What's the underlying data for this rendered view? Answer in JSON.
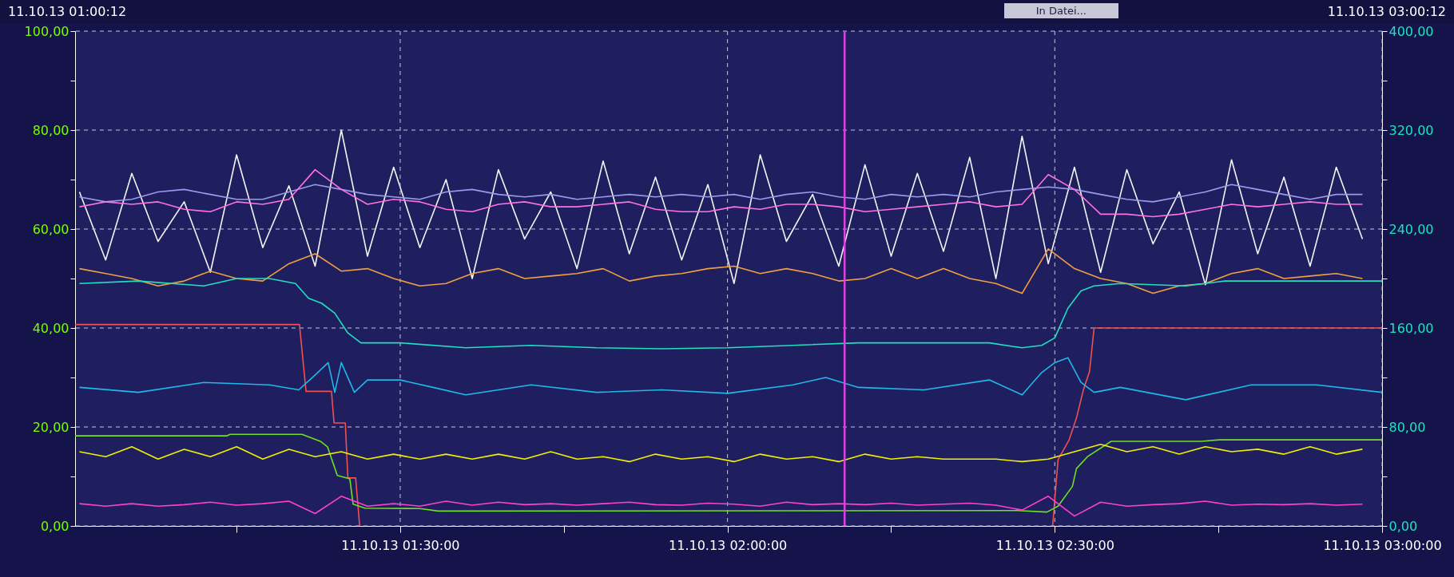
{
  "chart_data": {
    "type": "line",
    "annotations": [
      "11.10.13 01:00:12",
      "11.10.13 03:00:12",
      "In Datei..."
    ],
    "x": [
      "--10-11T01:00:36",
      "--10-11T01:03:00",
      "--10-11T01:05:24",
      "--10-11T01:07:48",
      "--10-11T01:10:12",
      "--10-11T01:12:36",
      "--10-11T01:15:00",
      "--10-11T01:17:24",
      "--10-11T01:19:48",
      "--10-11T01:22:12",
      "--10-11T01:24:36",
      "--10-11T01:27:00",
      "--10-11T01:29:24",
      "--10-11T01:31:48",
      "--10-11T01:34:12",
      "--10-11T01:36:36",
      "--10-11T01:39:00",
      "--10-11T01:41:24",
      "--10-11T01:43:48",
      "--10-11T01:46:12",
      "--10-11T01:48:36",
      "--10-11T01:51:00",
      "--10-11T01:53:24",
      "--10-11T01:55:48",
      "--10-11T01:58:12",
      "--10-11T02:00:36",
      "--10-11T02:03:00",
      "--10-11T02:05:24",
      "--10-11T02:07:48",
      "--10-11T02:10:12",
      "--10-11T02:12:36",
      "--10-11T02:15:00",
      "--10-11T02:17:24",
      "--10-11T02:19:48",
      "--10-11T02:22:12",
      "--10-11T02:24:36",
      "--10-11T02:27:00",
      "--10-11T02:29:24",
      "--10-11T02:31:48",
      "--10-11T02:34:12",
      "--10-11T02:36:36",
      "--10-11T02:39:00",
      "--10-11T02:41:24",
      "--10-11T02:43:48",
      "--10-11T02:46:12",
      "--10-11T02:48:36",
      "--10-11T02:51:00",
      "--10-11T02:53:24",
      "--10-11T02:55:48",
      "--10-11T02:58:12"
    ],
    "xlim": [
      "--10-11T01:00:12",
      "--10-11T03:00:00"
    ],
    "xticks": [
      {
        "value": "--10-11T01:15:00",
        "label": null
      },
      {
        "value": "--10-11T01:30:00",
        "label": "11.10.13 01:30:00"
      },
      {
        "value": "--10-11T01:45:00",
        "label": null
      },
      {
        "value": "--10-11T02:00:00",
        "label": "11.10.13 02:00:00"
      },
      {
        "value": "--10-11T02:15:00",
        "label": null
      },
      {
        "value": "--10-11T02:30:00",
        "label": "11.10.13 02:30:00"
      },
      {
        "value": "--10-11T02:45:00",
        "label": null
      },
      {
        "value": "--10-11T03:00:00",
        "label": "11.10.13 03:00:00"
      }
    ],
    "ylim": [
      0,
      100
    ],
    "yticks": [
      {
        "value": 0,
        "label": "0,00"
      },
      {
        "value": 10,
        "label": null
      },
      {
        "value": 20,
        "label": "20,00"
      },
      {
        "value": 30,
        "label": null
      },
      {
        "value": 40,
        "label": "40,00"
      },
      {
        "value": 50,
        "label": null
      },
      {
        "value": 60,
        "label": "60,00"
      },
      {
        "value": 70,
        "label": null
      },
      {
        "value": 80,
        "label": "80,00"
      },
      {
        "value": 90,
        "label": null
      },
      {
        "value": 100,
        "label": "100,00"
      }
    ],
    "y2lim": [
      0,
      400
    ],
    "y2ticks": [
      {
        "value": 0,
        "label": "0,00"
      },
      {
        "value": 40,
        "label": null
      },
      {
        "value": 80,
        "label": "80,00"
      },
      {
        "value": 120,
        "label": null
      },
      {
        "value": 160,
        "label": "160,00"
      },
      {
        "value": 200,
        "label": null
      },
      {
        "value": 240,
        "label": "240,00"
      },
      {
        "value": 280,
        "label": null
      },
      {
        "value": 320,
        "label": "320,00"
      },
      {
        "value": 360,
        "label": null
      },
      {
        "value": 400,
        "label": "400,00"
      }
    ],
    "grid": true,
    "ref_lines": [
      {
        "axis": "x",
        "value": "--10-11T02:10:44",
        "color": "#e040e0"
      }
    ],
    "series": [
      {
        "color": "#f4f4f4",
        "axis": "y2",
        "values": [
          270,
          215,
          285,
          230,
          262,
          205,
          300,
          225,
          275,
          210,
          320,
          218,
          290,
          225,
          280,
          200,
          288,
          232,
          270,
          208,
          295,
          220,
          282,
          215,
          276,
          196,
          300,
          230,
          268,
          210,
          292,
          218,
          285,
          222,
          298,
          200,
          315,
          212,
          290,
          205,
          288,
          228,
          270,
          195,
          296,
          220,
          282,
          210,
          290,
          232
        ]
      },
      {
        "color": "#9a9aee",
        "values": [
          66.5,
          65.5,
          66,
          67.5,
          68,
          67,
          66,
          66,
          67.5,
          69,
          68,
          67,
          66.5,
          66,
          67.5,
          68,
          67,
          66.5,
          67,
          66,
          66.5,
          67,
          66.5,
          67,
          66.5,
          67,
          66,
          67,
          67.5,
          66.5,
          66,
          67,
          66.5,
          67,
          66.5,
          67.5,
          68,
          68.5,
          68,
          67,
          66,
          65.5,
          66.5,
          67.5,
          69,
          68,
          67,
          66,
          67,
          67
        ]
      },
      {
        "color": "#ff70e0",
        "values": [
          64.5,
          65.5,
          65,
          65.5,
          64,
          63.5,
          65.5,
          65,
          66,
          72,
          68,
          65,
          66,
          65.5,
          64,
          63.5,
          65,
          65.5,
          64.5,
          64.5,
          65,
          65.5,
          64,
          63.5,
          63.5,
          64.5,
          64,
          65,
          65,
          64.5,
          63.5,
          64,
          64.5,
          65,
          65.5,
          64.5,
          65,
          71,
          68,
          63,
          63,
          62.5,
          63,
          64,
          65,
          64.5,
          65,
          65.5,
          65,
          65
        ]
      },
      {
        "color": "#f0a040",
        "values": [
          52,
          51,
          50,
          48.5,
          49.5,
          51.5,
          50,
          49.5,
          53,
          55,
          51.5,
          52,
          50,
          48.5,
          49,
          51,
          52,
          50,
          50.5,
          51,
          52,
          49.5,
          50.5,
          51,
          52,
          52.5,
          51,
          52,
          51,
          49.5,
          50,
          52,
          50,
          52,
          50,
          49,
          47,
          56,
          52,
          50,
          49,
          47,
          48.5,
          49,
          51,
          52,
          50,
          50.5,
          51,
          50
        ]
      },
      {
        "color": "#20e0c0",
        "x": [
          "--10-11T01:00:36",
          "--10-11T01:06:00",
          "--10-11T01:12:00",
          "--10-11T01:15:00",
          "--10-11T01:18:00",
          "--10-11T01:20:24",
          "--10-11T01:21:36",
          "--10-11T01:22:48",
          "--10-11T01:24:00",
          "--10-11T01:25:12",
          "--10-11T01:26:24",
          "--10-11T01:30:00",
          "--10-11T01:36:00",
          "--10-11T01:42:00",
          "--10-11T01:48:00",
          "--10-11T01:54:00",
          "--10-11T02:00:00",
          "--10-11T02:06:00",
          "--10-11T02:12:00",
          "--10-11T02:18:00",
          "--10-11T02:24:00",
          "--10-11T02:27:00",
          "--10-11T02:28:48",
          "--10-11T02:30:00",
          "--10-11T02:31:12",
          "--10-11T02:32:24",
          "--10-11T02:33:36",
          "--10-11T02:36:00",
          "--10-11T02:42:00",
          "--10-11T02:45:36",
          "--10-11T02:51:00",
          "--10-11T03:00:00"
        ],
        "values": [
          49,
          49.5,
          48.5,
          50,
          50,
          49,
          46,
          45,
          43,
          39,
          37,
          37,
          36,
          36.5,
          36,
          35.8,
          36,
          36.5,
          37,
          37,
          37,
          36,
          36.5,
          38,
          44,
          47.5,
          48.5,
          49,
          48.5,
          49.5,
          49.5,
          49.5
        ]
      },
      {
        "color": "#f05050",
        "x": [
          "--10-11T01:00:12",
          "--10-11T01:20:46",
          "--10-11T01:21:22",
          "--10-11T01:23:42",
          "--10-11T01:23:56",
          "--10-11T01:24:58",
          "--10-11T01:25:12",
          "--10-11T01:25:55",
          "--10-11T01:26:17",
          "--10-11T01:54:00",
          "--10-11T02:29:48",
          "--10-11T02:30:18",
          "--10-11T02:31:19",
          "--10-11T02:31:59",
          "--10-11T02:32:38",
          "--10-11T02:33:11",
          "--10-11T02:33:36",
          "--10-11T03:00:00"
        ],
        "values": [
          40.7,
          40.7,
          27.2,
          27.2,
          20.8,
          20.8,
          9.7,
          9.7,
          0,
          null,
          0,
          13.4,
          17.4,
          21.8,
          27.6,
          31.2,
          40,
          40
        ]
      },
      {
        "color": "#20b8e8",
        "x": [
          "--10-11T01:00:36",
          "--10-11T01:06:00",
          "--10-11T01:12:00",
          "--10-11T01:18:00",
          "--10-11T01:20:42",
          "--10-11T01:22:12",
          "--10-11T01:23:24",
          "--10-11T01:24:00",
          "--10-11T01:24:36",
          "--10-11T01:25:48",
          "--10-11T01:27:00",
          "--10-11T01:30:00",
          "--10-11T01:33:00",
          "--10-11T01:36:00",
          "--10-11T01:42:00",
          "--10-11T01:48:00",
          "--10-11T01:54:00",
          "--10-11T02:00:00",
          "--10-11T02:06:00",
          "--10-11T02:09:00",
          "--10-11T02:12:00",
          "--10-11T02:18:00",
          "--10-11T02:24:00",
          "--10-11T02:27:00",
          "--10-11T02:28:48",
          "--10-11T02:30:00",
          "--10-11T02:31:12",
          "--10-11T02:32:24",
          "--10-11T02:33:36",
          "--10-11T02:36:00",
          "--10-11T02:42:00",
          "--10-11T02:48:00",
          "--10-11T02:54:00",
          "--10-11T03:00:00"
        ],
        "values": [
          28,
          27,
          29,
          28.5,
          27.5,
          30.5,
          33,
          27,
          33,
          27,
          29.5,
          29.5,
          28,
          26.5,
          28.5,
          27,
          27.5,
          26.8,
          28.5,
          30,
          28,
          27.5,
          29.5,
          26.5,
          31,
          33,
          34,
          29,
          27,
          28,
          25.5,
          28.5,
          28.5,
          27
        ]
      },
      {
        "color": "#70e020",
        "x": [
          "--10-11T01:00:12",
          "--10-11T01:14:06",
          "--10-11T01:14:24",
          "--10-11T01:21:00",
          "--10-11T01:22:41",
          "--10-11T01:23:20",
          "--10-11T01:24:14",
          "--10-11T01:25:23",
          "--10-11T01:25:41",
          "--10-11T01:26:46",
          "--10-11T01:31:48",
          "--10-11T01:33:29",
          "--10-11T02:26:35",
          "--10-11T02:29:17",
          "--10-11T02:30:18",
          "--10-11T02:31:37",
          "--10-11T02:31:59",
          "--10-11T02:33:00",
          "--10-11T02:35:10",
          "--10-11T02:43:26",
          "--10-11T02:45:04",
          "--10-11T03:00:00"
        ],
        "values": [
          18.2,
          18.2,
          18.5,
          18.5,
          17.1,
          16,
          10.2,
          9.5,
          4.4,
          3.6,
          3.5,
          3.0,
          3.1,
          2.8,
          4,
          8,
          11.6,
          14,
          17.1,
          17.1,
          17.4,
          17.4
        ]
      },
      {
        "color": "#f0f000",
        "values": [
          15,
          14,
          16,
          13.5,
          15.5,
          14,
          16,
          13.5,
          15.5,
          14,
          15,
          13.5,
          14.5,
          13.5,
          14.5,
          13.5,
          14.5,
          13.5,
          15,
          13.5,
          14,
          13,
          14.5,
          13.5,
          14,
          13,
          14.5,
          13.5,
          14,
          13,
          14.5,
          13.5,
          14,
          13.5,
          13.5,
          13.5,
          13,
          13.5,
          15,
          16.5,
          15,
          16,
          14.5,
          16,
          15,
          15.5,
          14.5,
          16,
          14.5,
          15.5
        ]
      },
      {
        "color": "#ff40d0",
        "values": [
          4.5,
          4,
          4.5,
          4,
          4.3,
          4.8,
          4.2,
          4.5,
          5,
          2.5,
          6,
          4,
          4.5,
          4,
          5,
          4.2,
          4.8,
          4.3,
          4.5,
          4.2,
          4.5,
          4.8,
          4.3,
          4.2,
          4.6,
          4.4,
          4,
          4.8,
          4.3,
          4.5,
          4.3,
          4.6,
          4.2,
          4.4,
          4.6,
          4.2,
          3.2,
          6,
          2,
          4.8,
          4,
          4.3,
          4.5,
          5,
          4.2,
          4.4,
          4.3,
          4.5,
          4.2,
          4.4
        ]
      }
    ]
  }
}
